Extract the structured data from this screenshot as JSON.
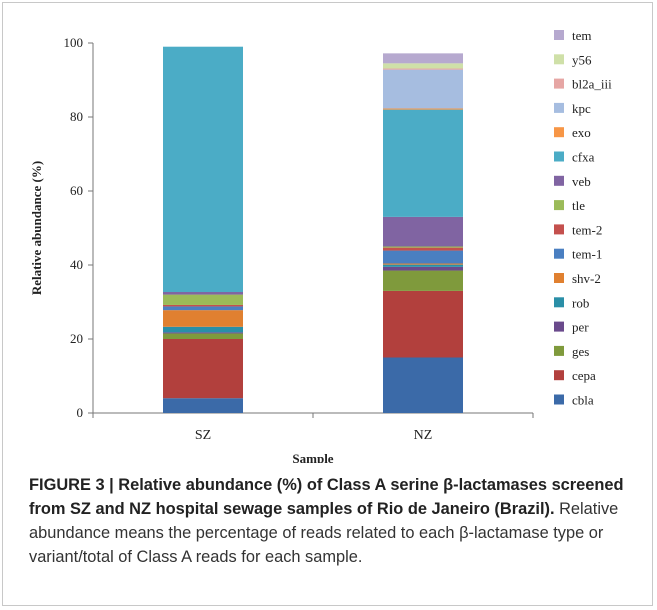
{
  "chart_data": {
    "type": "bar",
    "stacked": true,
    "categories": [
      "SZ",
      "NZ"
    ],
    "xlabel": "Sample",
    "ylabel": "Relative abundance (%)",
    "ylim": [
      0,
      100
    ],
    "yticks": [
      0,
      20,
      40,
      60,
      80,
      100
    ],
    "grid": false,
    "legend_position": "right",
    "series": [
      {
        "name": "cbla",
        "color": "#3b6aa8",
        "values": [
          4.0,
          15.0
        ]
      },
      {
        "name": "cepa",
        "color": "#b2403d",
        "values": [
          16.0,
          18.0
        ]
      },
      {
        "name": "ges",
        "color": "#7f9a3c",
        "values": [
          1.5,
          5.5
        ]
      },
      {
        "name": "per",
        "color": "#6a4a8c",
        "values": [
          0.3,
          1.0
        ]
      },
      {
        "name": "rob",
        "color": "#2a8fa7",
        "values": [
          1.5,
          0.6
        ]
      },
      {
        "name": "shv-2",
        "color": "#e08030",
        "values": [
          4.5,
          0.3
        ]
      },
      {
        "name": "tem-1",
        "color": "#4a7fc1",
        "values": [
          1.0,
          3.5
        ]
      },
      {
        "name": "tem-2",
        "color": "#c4504d",
        "values": [
          0.4,
          0.8
        ]
      },
      {
        "name": "tle",
        "color": "#9bbb59",
        "values": [
          2.8,
          0.3
        ]
      },
      {
        "name": "veb",
        "color": "#8064a2",
        "values": [
          0.7,
          8.0
        ]
      },
      {
        "name": "cfxa",
        "color": "#4bacc6",
        "values": [
          66.3,
          29.0
        ]
      },
      {
        "name": "exo",
        "color": "#f79646",
        "values": [
          0.0,
          0.3
        ]
      },
      {
        "name": "kpc",
        "color": "#a6bde0",
        "values": [
          0.0,
          10.5
        ]
      },
      {
        "name": "bl2a_iii",
        "color": "#e6a6a4",
        "values": [
          0.0,
          0.3
        ]
      },
      {
        "name": "y56",
        "color": "#cfe0a8",
        "values": [
          0.0,
          1.4
        ]
      },
      {
        "name": "tem",
        "color": "#b6a9cf",
        "values": [
          0.0,
          2.7
        ]
      }
    ]
  },
  "caption": {
    "bold_text": "FIGURE 3 | Relative abundance (%) of Class A serine β-lactamases screened from SZ and NZ hospital sewage samples of Rio de Janeiro (Brazil).",
    "normal_text": " Relative abundance means the percentage of reads related to each β-lactamase type or variant/total of Class A reads for each sample."
  }
}
